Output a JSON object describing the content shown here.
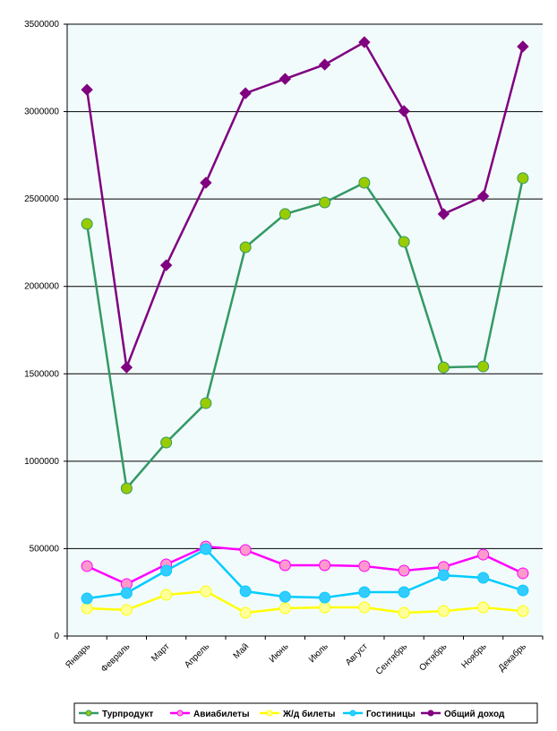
{
  "chart_data": {
    "type": "line",
    "categories": [
      "Январь",
      "Февраль",
      "Март",
      "Апрель",
      "Май",
      "Июнь",
      "Июль",
      "Август",
      "Сентябрь",
      "Октябрь",
      "Ноябрь",
      "Декабрь"
    ],
    "series": [
      {
        "name": "Турпродукт",
        "color": "#339966",
        "marker_color": "#99cc00",
        "values": [
          2357000,
          845000,
          1107000,
          1332000,
          2224000,
          2414000,
          2480000,
          2593000,
          2255000,
          1537000,
          1542000,
          2619000
        ]
      },
      {
        "name": "Авиабилеты",
        "color": "#ff00ff",
        "marker_color": "#ff99cc",
        "values": [
          400000,
          297000,
          410000,
          512000,
          492000,
          405000,
          405000,
          400000,
          374000,
          395000,
          466000,
          359000
        ]
      },
      {
        "name": "Ж/д билеты",
        "color": "#ffff00",
        "marker_color": "#ffff99",
        "values": [
          159000,
          149000,
          236000,
          256000,
          133000,
          159000,
          164000,
          164000,
          133000,
          143000,
          164000,
          143000
        ]
      },
      {
        "name": "Гостиницы",
        "color": "#00ccff",
        "marker_color": "#33ccff",
        "values": [
          215000,
          246000,
          374000,
          497000,
          256000,
          225000,
          220000,
          251000,
          251000,
          348000,
          333000,
          261000
        ]
      },
      {
        "name": "Общий доход",
        "color": "#800080",
        "marker_color": "#800080",
        "values": [
          3125000,
          1537000,
          2121000,
          2593000,
          3105000,
          3187000,
          3269000,
          3397000,
          3003000,
          2414000,
          2516000,
          3372000
        ]
      }
    ],
    "ylim": [
      0,
      3500000
    ],
    "yticks": [
      0,
      500000,
      1000000,
      1500000,
      2000000,
      2500000,
      3000000,
      3500000
    ],
    "grid": true,
    "legend": "bottom",
    "plot_background": "#f2fbfb"
  }
}
